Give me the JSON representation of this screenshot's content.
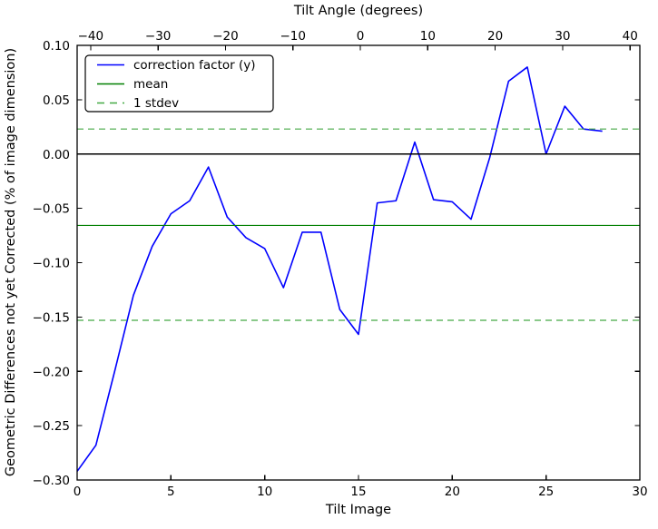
{
  "chart_data": {
    "type": "line",
    "grid": false,
    "series": [
      {
        "name": "correction factor (y)",
        "color": "#0000ff",
        "style": "solid",
        "x": [
          0,
          1,
          2,
          3,
          4,
          5,
          6,
          7,
          8,
          9,
          10,
          11,
          12,
          13,
          14,
          15,
          16,
          17,
          18,
          19,
          20,
          21,
          22,
          23,
          24,
          25,
          26,
          27,
          28
        ],
        "y": [
          -0.292,
          -0.268,
          -0.2,
          -0.13,
          -0.085,
          -0.055,
          -0.043,
          -0.012,
          -0.058,
          -0.077,
          -0.087,
          -0.123,
          -0.072,
          -0.072,
          -0.143,
          -0.166,
          -0.045,
          -0.043,
          0.011,
          -0.042,
          -0.044,
          -0.06,
          -0.003,
          0.067,
          0.08,
          0.0,
          0.044,
          0.023,
          0.021
        ]
      }
    ],
    "reference_lines": [
      {
        "name": "zero",
        "value": 0.0,
        "color": "#000000",
        "style": "solid",
        "width": 1.6
      },
      {
        "name": "mean",
        "value": -0.0657,
        "color": "#008000",
        "style": "solid",
        "width": 1.2
      },
      {
        "name": "stdev-upper",
        "value": 0.023,
        "color": "#44a944",
        "style": "dashed",
        "width": 1.2
      },
      {
        "name": "stdev-lower",
        "value": -0.153,
        "color": "#44a944",
        "style": "dashed",
        "width": 1.2
      }
    ],
    "axes": {
      "bottom": {
        "label": "Tilt Image",
        "range": [
          0,
          30
        ],
        "ticks": [
          0,
          5,
          10,
          15,
          20,
          25,
          30
        ],
        "tick_labels": [
          "0",
          "5",
          "10",
          "15",
          "20",
          "25",
          "30"
        ]
      },
      "top": {
        "label": "Tilt Angle (degrees)",
        "range": [
          -42.0,
          41.45
        ],
        "ticks": [
          -40,
          -30,
          -20,
          -10,
          0,
          10,
          20,
          30,
          40
        ],
        "tick_labels": [
          "−40",
          "−30",
          "−20",
          "−10",
          "0",
          "10",
          "20",
          "30",
          "40"
        ]
      },
      "left": {
        "label": "Geometric Differences not yet Corrected (% of image dimension)",
        "range": [
          -0.3,
          0.1
        ],
        "ticks": [
          0.1,
          0.05,
          0.0,
          -0.05,
          -0.1,
          -0.15,
          -0.2,
          -0.25,
          -0.3
        ],
        "tick_labels": [
          "0.10",
          "0.05",
          "0.00",
          "−0.05",
          "−0.10",
          "−0.15",
          "−0.20",
          "−0.25",
          "−0.30"
        ]
      }
    },
    "legend": {
      "position": "upper left",
      "entries": [
        {
          "label": "correction factor (y)",
          "color": "#0000ff",
          "style": "solid"
        },
        {
          "label": "mean",
          "color": "#008000",
          "style": "solid"
        },
        {
          "label": "1 stdev",
          "color": "#44a944",
          "style": "dashed"
        }
      ]
    }
  }
}
